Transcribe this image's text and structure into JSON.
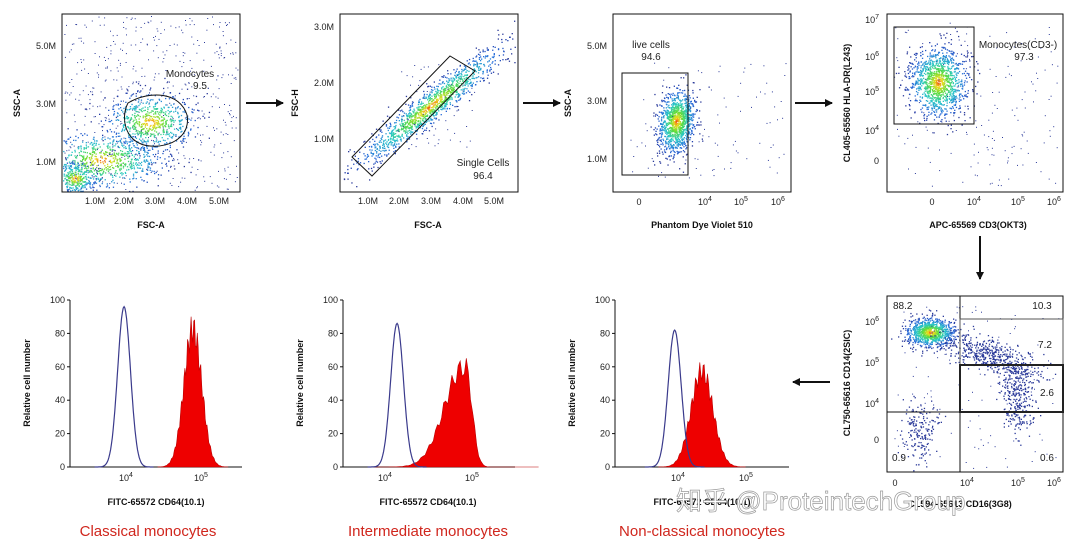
{
  "chart_data": [
    {
      "type": "scatter",
      "xlabel": "FSC-A",
      "ylabel": "SSC-A",
      "x_ticks": [
        "1.0M",
        "2.0M",
        "3.0M",
        "4.0M",
        "5.0M"
      ],
      "y_ticks": [
        "1.0M",
        "3.0M",
        "5.0M"
      ],
      "gate": {
        "name": "Monocytes",
        "value": "9.5"
      }
    },
    {
      "type": "scatter",
      "xlabel": "FSC-A",
      "ylabel": "FSC-H",
      "x_ticks": [
        "1.0M",
        "2.0M",
        "3.0M",
        "4.0M",
        "5.0M"
      ],
      "y_ticks": [
        "1.0M",
        "2.0M",
        "3.0M"
      ],
      "gate": {
        "name": "Single Cells",
        "value": "96.4"
      }
    },
    {
      "type": "scatter",
      "xlabel": "Phantom Dye Violet 510",
      "ylabel": "SSC-A",
      "x_ticks": [
        "0",
        "10",
        "10",
        "10"
      ],
      "x_tick_exps": [
        "",
        "4",
        "5",
        "6"
      ],
      "y_ticks": [
        "1.0M",
        "3.0M",
        "5.0M"
      ],
      "gate": {
        "name": "live cells",
        "value": "94.6"
      }
    },
    {
      "type": "scatter",
      "xlabel": "APC-65569 CD3(OKT3)",
      "ylabel": "CL405-65560 HLA-DR(L243)",
      "x_ticks": [
        "0",
        "10",
        "10",
        "10"
      ],
      "x_tick_exps": [
        "",
        "4",
        "5",
        "6"
      ],
      "y_ticks": [
        "0",
        "10",
        "10",
        "10",
        "10"
      ],
      "y_tick_exps": [
        "",
        "4",
        "5",
        "6",
        "7"
      ],
      "gate": {
        "name": "Monocytes(CD3-)",
        "value": "97.3"
      }
    },
    {
      "type": "scatter",
      "xlabel": "CL594-65613 CD16(3G8)",
      "ylabel": "CL750-65616 CD14(2SIC)",
      "x_ticks": [
        "0",
        "10",
        "10",
        "10"
      ],
      "x_tick_exps": [
        "",
        "4",
        "5",
        "6"
      ],
      "y_ticks": [
        "0",
        "10",
        "10",
        "10"
      ],
      "y_tick_exps": [
        "",
        "4",
        "5",
        "6"
      ],
      "quadrants": [
        "88.2",
        "10.3",
        "7.2",
        "2.6",
        "0.9",
        "0.6"
      ]
    },
    {
      "type": "area",
      "title": "Classical monocytes",
      "xlabel": "FITC-65572 CD64(10.1)",
      "ylabel": "Relative cell number",
      "ylim": [
        0,
        100
      ],
      "y_ticks": [
        "0",
        "20",
        "40",
        "60",
        "80",
        "100"
      ],
      "x_ticks": [
        "10",
        "10"
      ],
      "x_tick_exps": [
        "4",
        "5"
      ],
      "series": [
        {
          "kind": "isotype-outline",
          "peak_log10": 3.6,
          "peak_value": 96
        },
        {
          "kind": "stained-filled",
          "peak_log10": 5.0,
          "peak_value": 92
        }
      ]
    },
    {
      "type": "area",
      "title": "Intermediate monocytes",
      "xlabel": "FITC-65572 CD64(10.1)",
      "ylabel": "Relative cell number",
      "ylim": [
        0,
        100
      ],
      "y_ticks": [
        "0",
        "20",
        "40",
        "60",
        "80",
        "100"
      ],
      "x_ticks": [
        "10",
        "10"
      ],
      "x_tick_exps": [
        "4",
        "5"
      ],
      "series": [
        {
          "kind": "isotype-outline",
          "peak_log10": 3.6,
          "peak_value": 86
        },
        {
          "kind": "stained-filled",
          "peak_log10": 4.8,
          "peak_value": 66
        }
      ]
    },
    {
      "type": "area",
      "title": "Non-classical monocytes",
      "xlabel": "FITC-65572 CD64(10.1)",
      "ylabel": "Relative cell number",
      "ylim": [
        0,
        100
      ],
      "y_ticks": [
        "0",
        "20",
        "40",
        "60",
        "80",
        "100"
      ],
      "x_ticks": [
        "10",
        "10"
      ],
      "x_tick_exps": [
        "4",
        "5"
      ],
      "series": [
        {
          "kind": "isotype-outline",
          "peak_log10": 3.7,
          "peak_value": 82
        },
        {
          "kind": "stained-filled",
          "peak_log10": 4.25,
          "peak_value": 64
        }
      ]
    }
  ],
  "watermark": "知乎 @ProteintechGroup",
  "colors": {
    "caption": "#d0261d",
    "fill": "#ee0000",
    "outline": "#3a3a8c"
  }
}
